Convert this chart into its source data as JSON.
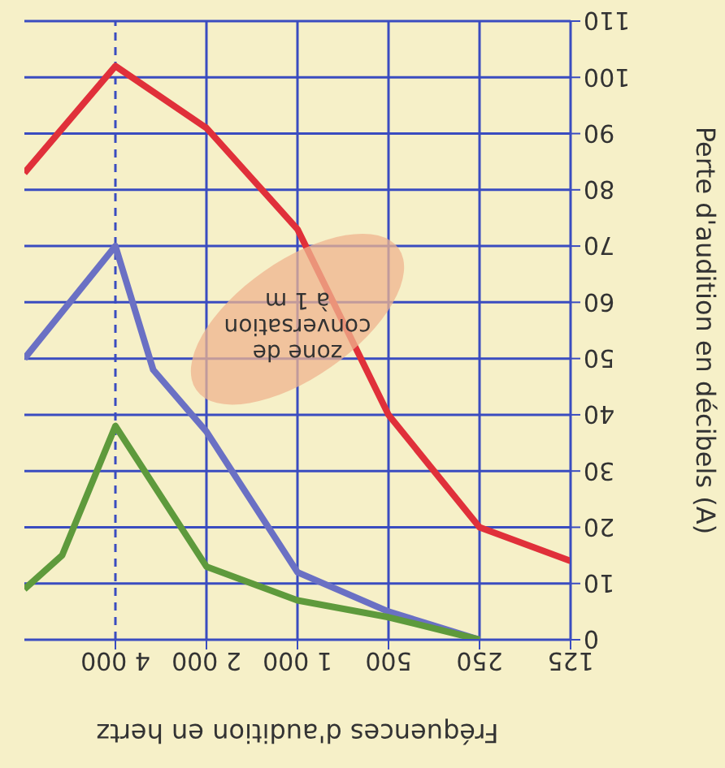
{
  "chart_data": {
    "type": "line",
    "xlabel": "Fréquences d'audition en hertz",
    "ylabel": "Perte d'audition en décibels (A)",
    "log": "x",
    "xlim": [
      8000,
      125
    ],
    "xticks": [
      125,
      250,
      500,
      {
        "value": 1000,
        "label": "1 000"
      },
      {
        "value": 2000,
        "label": "2 000"
      },
      {
        "value": 4000,
        "label": "4 000"
      }
    ],
    "ylim": [
      0,
      110
    ],
    "yticks": [
      0,
      10,
      20,
      30,
      40,
      50,
      60,
      70,
      80,
      90,
      100,
      110
    ],
    "grid": true,
    "marker": "none",
    "line_style": "solid",
    "series": [
      {
        "color": "#e0303a",
        "x": [
          125,
          250,
          500,
          1000,
          2000,
          4000,
          8000
        ],
        "values": [
          14,
          20,
          40,
          73,
          91,
          102,
          83
        ]
      },
      {
        "color": "#6a70c4",
        "x": [
          250,
          500,
          1000,
          2000,
          3000,
          4000,
          8000
        ],
        "values": [
          0,
          5,
          12,
          37,
          48,
          70,
          50
        ]
      },
      {
        "color": "#5e9a3c",
        "x": [
          250,
          500,
          1000,
          2000,
          4000,
          6000,
          8000
        ],
        "values": [
          0,
          4,
          7,
          13,
          38,
          15,
          9
        ]
      }
    ],
    "ref_lines": [
      {
        "axis": "x",
        "value": 4000,
        "color": "#3a4cc0",
        "line_style": "dashed"
      }
    ],
    "annotations": [
      "zone de conversation à 1 m"
    ]
  }
}
